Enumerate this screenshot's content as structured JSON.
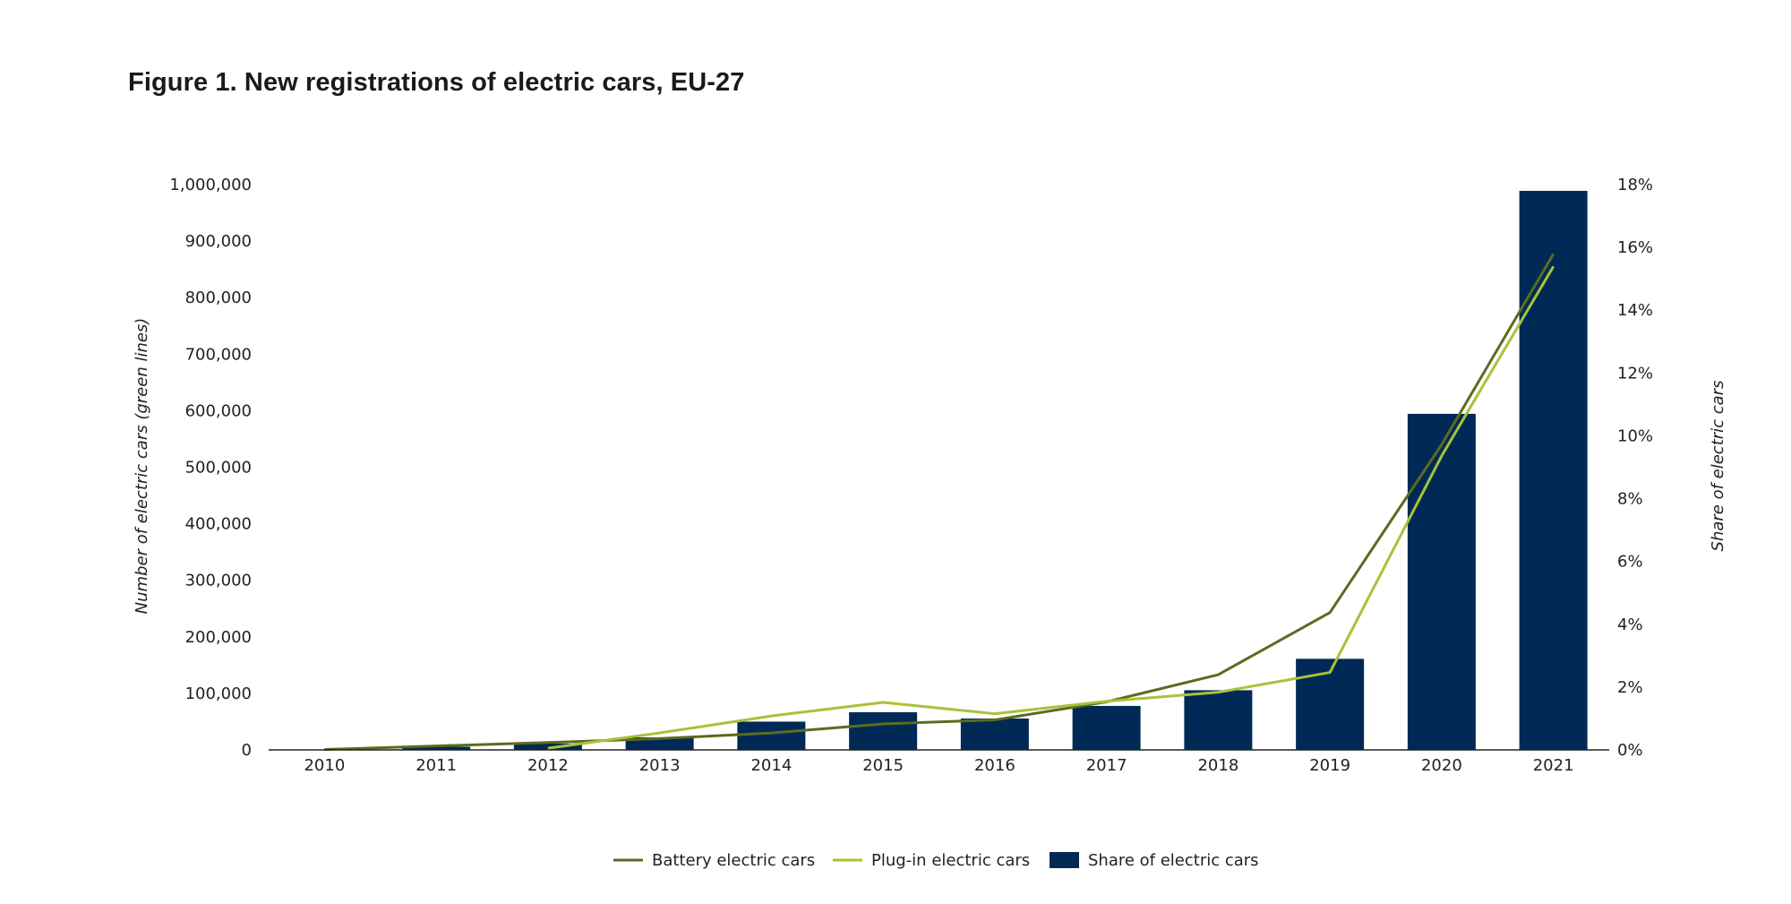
{
  "title": "Figure 1. New registrations of electric cars, EU-27",
  "colors": {
    "bar": "#002a55",
    "battery": "#5c6b1f",
    "plugin": "#a8c23a",
    "axis": "#222222"
  },
  "chart_data": {
    "type": "bar",
    "title": "Figure 1. New registrations of electric cars, EU-27",
    "categories": [
      "2010",
      "2011",
      "2012",
      "2013",
      "2014",
      "2015",
      "2016",
      "2017",
      "2018",
      "2019",
      "2020",
      "2021"
    ],
    "ylabel": "Number of electric cars (green lines)",
    "y2label": "Share of electric cars",
    "ylim": [
      0,
      1000000
    ],
    "y2lim": [
      0,
      18
    ],
    "yticks": [
      "0",
      "100,000",
      "200,000",
      "300,000",
      "400,000",
      "500,000",
      "600,000",
      "700,000",
      "800,000",
      "900,000",
      "1,000,000"
    ],
    "y2ticks": [
      "0%",
      "2%",
      "4%",
      "6%",
      "8%",
      "10%",
      "12%",
      "14%",
      "16%",
      "18%"
    ],
    "series": [
      {
        "name": "Battery electric cars",
        "type": "line",
        "axis": "left",
        "values": [
          700,
          7000,
          13000,
          20000,
          30000,
          46000,
          53000,
          85000,
          133000,
          243000,
          540000,
          877000
        ]
      },
      {
        "name": "Plug-in electric cars",
        "type": "line",
        "axis": "left",
        "values": [
          null,
          null,
          3000,
          30000,
          60000,
          84000,
          64000,
          86000,
          102000,
          137000,
          520000,
          855000
        ]
      },
      {
        "name": "Share of electric cars",
        "type": "bar",
        "axis": "right",
        "values": [
          0.0,
          0.1,
          0.2,
          0.4,
          0.9,
          1.2,
          1.0,
          1.4,
          1.9,
          2.9,
          10.7,
          17.8
        ]
      }
    ],
    "legend_position": "bottom",
    "grid": false
  }
}
